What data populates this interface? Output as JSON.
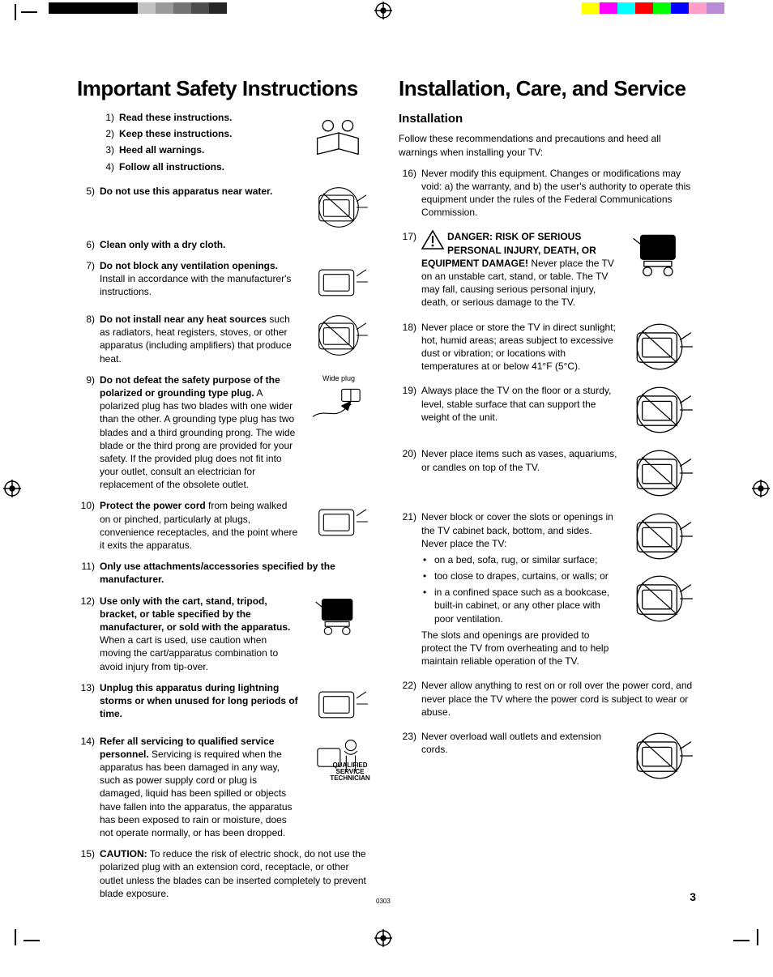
{
  "page_number": "3",
  "tiny_code": "0303",
  "color_bar_top_left": [
    "#000000",
    "#000000",
    "#000000",
    "#000000",
    "#000000",
    "#c2c2c2",
    "#9a9a9a",
    "#737373",
    "#4d4d4d",
    "#262626"
  ],
  "color_bar_top_right": [
    "#ffff00",
    "#ff00ff",
    "#00ffff",
    "#ff0000",
    "#00ff00",
    "#0000ff",
    "#ff9ec6",
    "#b98ad6"
  ],
  "left": {
    "heading": "Important Safety Instructions",
    "items": [
      {
        "n": "1)",
        "bold": "Read these instructions.",
        "rest": "",
        "illus": false,
        "tight": true
      },
      {
        "n": "2)",
        "bold": "Keep these instructions.",
        "rest": "",
        "illus": false,
        "tight": true
      },
      {
        "n": "3)",
        "bold": "Heed all warnings.",
        "rest": "",
        "illus": false,
        "tight": true
      },
      {
        "n": "4)",
        "bold": "Follow all instructions.",
        "rest": "",
        "illus": false,
        "tight": false,
        "topillus": true
      },
      {
        "n": "5)",
        "bold": "Do not use this apparatus near water.",
        "rest": "",
        "illus": true,
        "prohibit": true
      },
      {
        "n": "6)",
        "bold": "Clean only with a dry cloth.",
        "rest": "",
        "illus": false
      },
      {
        "n": "7)",
        "bold": "Do not block any ventilation openings.",
        "rest": " Install in accordance with the manufacturer's instructions.",
        "illus": true
      },
      {
        "n": "8)",
        "bold": "Do not install near any heat sources",
        "rest": " such as radiators, heat registers, stoves, or other apparatus (including amplifiers) that produce heat.",
        "illus": true,
        "prohibit": true
      },
      {
        "n": "9)",
        "bold": "Do not defeat the safety purpose of the polarized or grounding type plug.",
        "rest": " A polarized plug has two blades with one wider than the other. A grounding type plug has two blades and a third grounding prong. The wide blade or the third prong are provided for your safety. If the provided plug does not fit into your outlet, consult an electrician for replacement of the obsolete outlet.",
        "illus": true,
        "plug": true
      },
      {
        "n": "10)",
        "bold": "Protect the power cord",
        "rest": " from being walked on or pinched, particularly at plugs, convenience receptacles, and the point where it exits the apparatus.",
        "illus": true
      },
      {
        "n": "11)",
        "bold": "Only use attachments/accessories specified by the manufacturer.",
        "rest": "",
        "illus": false
      },
      {
        "n": "12)",
        "bold": "Use only with the cart, stand, tripod, bracket, or table specified by the manufacturer, or sold with the apparatus.",
        "rest": " When a cart is used, use caution when moving the cart/apparatus combination to avoid injury from tip-over.",
        "illus": true
      },
      {
        "n": "13)",
        "bold": "Unplug this apparatus during lightning storms or when unused for long periods of time.",
        "rest": "",
        "illus": true
      },
      {
        "n": "14)",
        "bold": "Refer all servicing to qualified service personnel.",
        "rest": " Servicing is required when the apparatus has been damaged in any way, such as power supply cord or plug is damaged, liquid has been spilled or objects have fallen into the apparatus, the apparatus has been exposed to rain or moisture, does not operate normally, or has been dropped.",
        "illus": true,
        "tech_caption": "QUALIFIED SERVICE TECHNICIAN"
      },
      {
        "n": "15)",
        "bold": "CAUTION:",
        "rest": " To reduce the risk of electric shock, do not use the polarized plug with an extension cord, receptacle, or other outlet unless the blades can be inserted completely to prevent blade exposure.",
        "illus": false
      }
    ],
    "wide_plug_label": "Wide plug"
  },
  "right": {
    "heading": "Installation, Care, and Service",
    "subheading": "Installation",
    "intro": "Follow these recommendations and precautions and heed all warnings when installing your TV:",
    "items": [
      {
        "n": "16)",
        "text": "Never modify this equipment. Changes or modifications may void: a) the warranty, and b) the user's authority to operate this equipment under the rules of the Federal Communications Commission.",
        "illus": false
      },
      {
        "n": "17)",
        "bold": "DANGER: RISK OF SERIOUS PERSONAL INJURY, DEATH, OR EQUIPMENT DAMAGE!",
        "rest": " Never place the TV on an unstable cart, stand, or table. The TV may fall, causing serious personal injury, death, or serious damage to the TV.",
        "illus": true,
        "warn": true
      },
      {
        "n": "18)",
        "text": "Never place or store the TV in direct sunlight; hot, humid areas; areas subject to excessive dust or vibration; or locations with temperatures at or below 41°F (5°C).",
        "illus": true,
        "prohibit": true
      },
      {
        "n": "19)",
        "text": "Always place the TV on the floor or a sturdy, level, stable surface that can support the weight of the unit.",
        "illus": true,
        "prohibit": true
      },
      {
        "n": "20)",
        "text": "Never place items such as vases, aquariums, or candles on top of the TV.",
        "illus": true,
        "prohibit": true
      },
      {
        "n": "21)",
        "text": "Never block or cover the slots or openings in the TV cabinet back, bottom, and sides. Never place the TV:",
        "illus": true,
        "prohibit": true,
        "bullets": [
          "on a bed, sofa, rug, or similar surface;",
          "too close to drapes, curtains, or walls; or",
          "in a confined space such as a bookcase, built-in cabinet, or any other place with poor ventilation."
        ],
        "after": "The slots and openings are provided to protect the TV from overheating and to help maintain reliable operation of the TV.",
        "illus2": true
      },
      {
        "n": "22)",
        "text": "Never allow anything to rest on or roll over the power cord, and never place the TV where the power cord is subject to wear or abuse.",
        "illus": false
      },
      {
        "n": "23)",
        "text": "Never overload wall outlets and extension cords.",
        "illus": true,
        "prohibit": true
      }
    ]
  }
}
